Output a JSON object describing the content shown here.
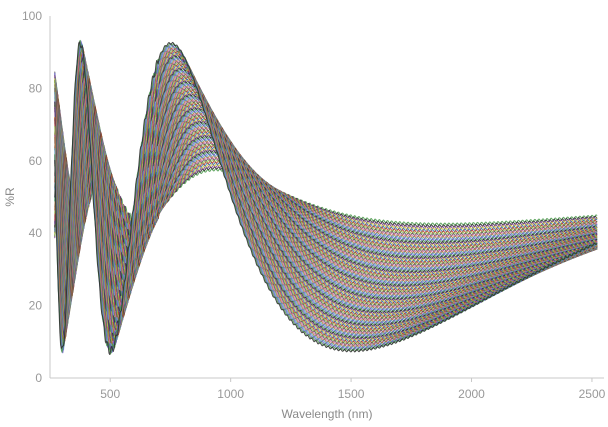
{
  "chart_data": {
    "type": "line",
    "title": "",
    "xlabel": "Wavelength (nm)",
    "ylabel": "%R",
    "xlim": [
      250,
      2550
    ],
    "ylim": [
      0,
      100
    ],
    "x_ticks": [
      500,
      1000,
      1500,
      2000,
      2500
    ],
    "y_ticks": [
      0,
      20,
      40,
      60,
      80,
      100
    ],
    "x_tick_labels": [
      "500",
      "1000",
      "1500",
      "2000",
      "2500"
    ],
    "y_tick_labels": [
      "0",
      "20",
      "40",
      "60",
      "80",
      "100"
    ],
    "grid": false,
    "legend": "none",
    "series_count": 110,
    "series_description": "Thin-film interference reflectance spectra; each curve is R(λ) = 50 + A·cos(2πk/λ), with amplitude A growing with order.",
    "envelope": {
      "max_reflectance_top_curve": 90,
      "min_reflectance": 5,
      "outermost_peak_nm": 1060,
      "outermost_dip_nm": 1410,
      "outermost_dip_value": 44
    },
    "colors": [
      "#4a9a4a",
      "#2c2c2c",
      "#7a3a8e",
      "#c8c83c",
      "#3a6fb0",
      "#c0392b",
      "#8fbf4a",
      "#555555",
      "#d06aa8",
      "#a57a3a",
      "#5aa5c8",
      "#6a5acd"
    ]
  }
}
